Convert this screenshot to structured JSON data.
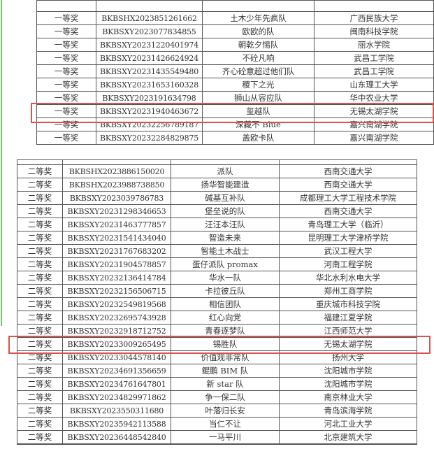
{
  "first_prize_table": {
    "rows": [
      [
        "一等奖",
        "BKBSHX2023851261662",
        "土木少年先疯队",
        "广西民族大学"
      ],
      [
        "一等奖",
        "BKBSXY2023077834855",
        "欧欧的队",
        "闽南科技学院"
      ],
      [
        "一等奖",
        "BKBSXY20231220401974",
        "朝乾夕惕队",
        "丽水学院"
      ],
      [
        "一等奖",
        "BKBSXY20231426624924",
        "不砼凡响",
        "武昌工学院"
      ],
      [
        "一等奖",
        "BKBSXY20231435549480",
        "齐心砼意超过他们队",
        "武昌工学院"
      ],
      [
        "一等奖",
        "BKBSXY20231653160328",
        "稷下之光",
        "山东理工大学"
      ],
      [
        "一等奖",
        "BKBSXY2023191634798",
        "狮山从容应队",
        "华中农业大学"
      ],
      [
        "一等奖",
        "BKBSXY20231940463672",
        "玺越队",
        "无锡太湖学院"
      ],
      [
        "一等奖",
        "BKBSXY20232256789187",
        "深藏不 Blue",
        "嘉兴南湖学院"
      ],
      [
        "一等奖",
        "BKBSXY20232284829875",
        "盖欧卡队",
        "嘉兴南湖学院"
      ]
    ],
    "highlighted_row": 7
  },
  "second_prize_table": {
    "rows": [
      [
        "二等奖",
        "BKBSHX2023886150020",
        "派队",
        "西南交通大学"
      ],
      [
        "二等奖",
        "BKBSHX2023988738850",
        "扬华智能建造",
        "西南交通大学"
      ],
      [
        "二等奖",
        "BKBSXY2023039786783",
        "碱基互补队",
        "成都理工大学工程技术学院"
      ],
      [
        "二等奖",
        "BKBSXY20231298346653",
        "堡垒说的队",
        "西南交通大学"
      ],
      [
        "二等奖",
        "BKBSXY20231463777857",
        "汪汪本汪队",
        "青岛理工大学（临沂）"
      ],
      [
        "二等奖",
        "BKBSXY20231541434040",
        "智造未来",
        "昆明理工大学津桥学院"
      ],
      [
        "二等奖",
        "BKBSXY20231767683202",
        "智能土木战士",
        "武汉工程大学"
      ],
      [
        "二等奖",
        "BKBSXY20231904578857",
        "蛋仔派队 promax",
        "河南工程学院"
      ],
      [
        "二等奖",
        "BKBSXY20232136414784",
        "华水一队",
        "华北水利水电大学"
      ],
      [
        "二等奖",
        "BKBSXY20232156506715",
        "卡拉彼丘队",
        "郑州工商学院"
      ],
      [
        "二等奖",
        "BKBSXY20232549819568",
        "相信团队",
        "重庆城市科技学院"
      ],
      [
        "二等奖",
        "BKBSXY20232695743928",
        "红心向党",
        "福建江夏学院"
      ],
      [
        "二等奖",
        "BKBSXY20232918712752",
        "青春逐梦队",
        "江西师范大学"
      ],
      [
        "二等奖",
        "BKBSXY20233009265495",
        "锡胜队",
        "无锡太湖学院"
      ],
      [
        "二等奖",
        "BKBSXY20233044578140",
        "价值观非常队",
        "扬州大学"
      ],
      [
        "二等奖",
        "BKBSXY20234691356659",
        "鲲鹏 BIM 队",
        "沈阳城市学院"
      ],
      [
        "二等奖",
        "BKBSXY20234761647801",
        "新 star 队",
        "沈阳城市学院"
      ],
      [
        "二等奖",
        "BKBSXY20234829971862",
        "争一保二队",
        "南京林业大学"
      ],
      [
        "二等奖",
        "BKBSXY2023550311680",
        "叶落归长安",
        "青岛滨海学院"
      ],
      [
        "二等奖",
        "BKBSXY20235942113588",
        "当仁不让",
        "河北工业大学"
      ],
      [
        "二等奖",
        "BKBSXY20236448542840",
        "一马平川",
        "北京建筑大学"
      ]
    ],
    "highlighted_row": 13
  },
  "colors": {
    "highlight": "#d9534f",
    "accent_line": "#7cc46a"
  }
}
